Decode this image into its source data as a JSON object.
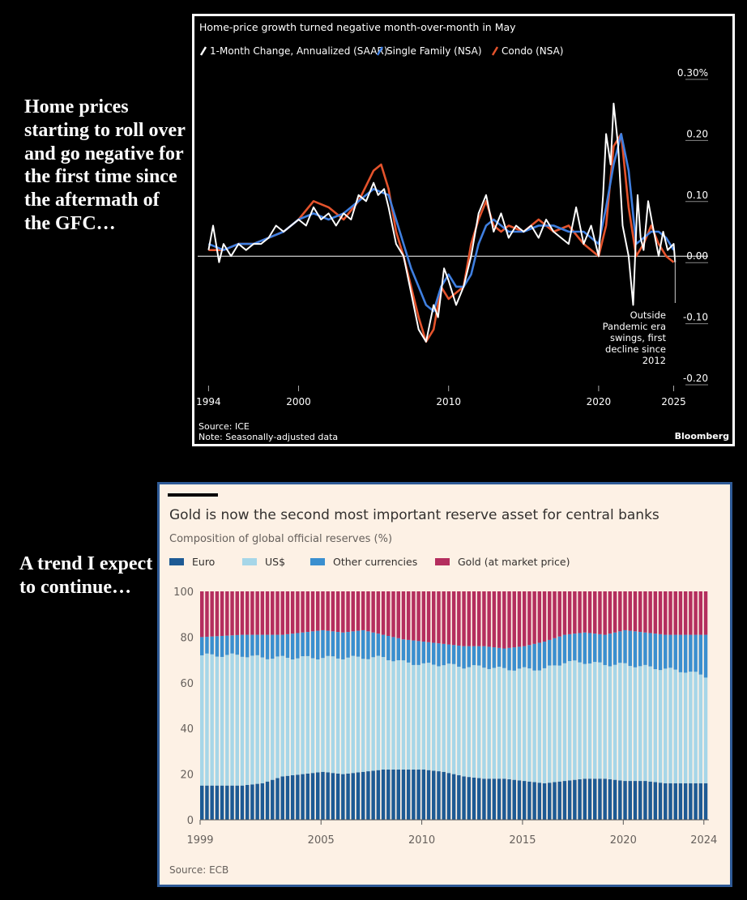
{
  "captions": {
    "top": "Home prices starting to roll over and go negative for the first time since the aftermath of the GFC…",
    "bottom": "A trend I expect to continue…"
  },
  "chart_data": [
    {
      "type": "line",
      "title": "Home-price growth turned negative month-over-month in May",
      "legend_position": "top-left",
      "series": [
        {
          "name": "1-Month Change, Annualized (SAAR)",
          "color": "#ffffff",
          "x": [
            1994,
            1994.3,
            1994.7,
            1995,
            1995.5,
            1996,
            1996.5,
            1997,
            1997.5,
            1998,
            1998.5,
            1999,
            1999.5,
            2000,
            2000.5,
            2001,
            2001.5,
            2002,
            2002.5,
            2003,
            2003.5,
            2004,
            2004.5,
            2005,
            2005.3,
            2005.7,
            2006,
            2006.5,
            2007,
            2007.5,
            2008,
            2008.5,
            2009,
            2009.3,
            2009.7,
            2010,
            2010.5,
            2011,
            2011.5,
            2012,
            2012.5,
            2013,
            2013.5,
            2014,
            2014.5,
            2015,
            2015.5,
            2016,
            2016.5,
            2017,
            2017.5,
            2018,
            2018.5,
            2019,
            2019.5,
            2020,
            2020.3,
            2020.5,
            2020.8,
            2021,
            2021.3,
            2021.6,
            2022,
            2022.3,
            2022.6,
            2022.8,
            2023,
            2023.3,
            2023.6,
            2024,
            2024.3,
            2024.6,
            2025,
            2025.1
          ],
          "y": [
            0.01,
            0.05,
            -0.01,
            0.02,
            0.0,
            0.02,
            0.01,
            0.02,
            0.02,
            0.03,
            0.05,
            0.04,
            0.05,
            0.06,
            0.05,
            0.08,
            0.06,
            0.07,
            0.05,
            0.07,
            0.06,
            0.1,
            0.09,
            0.12,
            0.1,
            0.11,
            0.08,
            0.02,
            0.0,
            -0.06,
            -0.12,
            -0.14,
            -0.08,
            -0.1,
            -0.02,
            -0.04,
            -0.08,
            -0.05,
            0.0,
            0.07,
            0.1,
            0.04,
            0.07,
            0.03,
            0.05,
            0.04,
            0.05,
            0.03,
            0.06,
            0.04,
            0.03,
            0.02,
            0.08,
            0.02,
            0.05,
            0.0,
            0.1,
            0.2,
            0.15,
            0.25,
            0.18,
            0.05,
            0.0,
            -0.08,
            0.1,
            0.03,
            0.01,
            0.09,
            0.05,
            0.0,
            0.04,
            0.01,
            0.02,
            -0.01
          ]
        },
        {
          "name": "Single Family (NSA)",
          "color": "#3f7fe0",
          "x": [
            1994,
            1995,
            1996,
            1997,
            1998,
            1999,
            2000,
            2001,
            2002,
            2003,
            2004,
            2005,
            2006,
            2006.5,
            2007,
            2007.5,
            2008,
            2008.5,
            2009,
            2009.5,
            2010,
            2010.5,
            2011,
            2011.5,
            2012,
            2012.5,
            2013,
            2014,
            2015,
            2016,
            2017,
            2018,
            2019,
            2020,
            2020.5,
            2021,
            2021.5,
            2022,
            2022.5,
            2023,
            2023.5,
            2024,
            2024.5,
            2025
          ],
          "y": [
            0.02,
            0.01,
            0.02,
            0.02,
            0.03,
            0.04,
            0.06,
            0.07,
            0.06,
            0.07,
            0.09,
            0.11,
            0.1,
            0.06,
            0.02,
            -0.02,
            -0.05,
            -0.08,
            -0.09,
            -0.05,
            -0.03,
            -0.05,
            -0.05,
            -0.03,
            0.02,
            0.05,
            0.06,
            0.04,
            0.04,
            0.05,
            0.05,
            0.04,
            0.04,
            0.02,
            0.08,
            0.15,
            0.2,
            0.14,
            0.02,
            0.03,
            0.04,
            0.04,
            0.03,
            0.01
          ]
        },
        {
          "name": "Condo (NSA)",
          "color": "#e4532c",
          "x": [
            1994,
            1995,
            1996,
            1997,
            1998,
            1999,
            2000,
            2001,
            2002,
            2003,
            2004,
            2005,
            2005.5,
            2006,
            2006.5,
            2007,
            2007.5,
            2008,
            2008.5,
            2009,
            2009.5,
            2010,
            2010.5,
            2011,
            2011.5,
            2012,
            2012.5,
            2013,
            2013.5,
            2014,
            2015,
            2016,
            2017,
            2018,
            2019,
            2020,
            2020.5,
            2021,
            2021.5,
            2022,
            2022.5,
            2023,
            2023.5,
            2024,
            2024.5,
            2025
          ],
          "y": [
            0.01,
            0.01,
            0.02,
            0.02,
            0.03,
            0.04,
            0.06,
            0.09,
            0.08,
            0.06,
            0.09,
            0.14,
            0.15,
            0.11,
            0.04,
            0.0,
            -0.05,
            -0.1,
            -0.14,
            -0.12,
            -0.05,
            -0.07,
            -0.06,
            -0.05,
            0.02,
            0.06,
            0.09,
            0.05,
            0.04,
            0.05,
            0.04,
            0.06,
            0.04,
            0.05,
            0.02,
            0.0,
            0.05,
            0.18,
            0.2,
            0.08,
            0.0,
            0.02,
            0.05,
            0.02,
            0.0,
            -0.01
          ]
        }
      ],
      "x_ticks": [
        "1994",
        "2000",
        "2010",
        "2020",
        "2025"
      ],
      "x_tick_values": [
        1994,
        2000,
        2010,
        2020,
        2025
      ],
      "xlim": [
        1993.6,
        2026.0
      ],
      "y_ticks": [
        "0.30%",
        "0.20",
        "0.10",
        "0.00",
        "-0.10",
        "-0.20"
      ],
      "y_tick_values": [
        0.3,
        0.2,
        0.1,
        0.0,
        -0.1,
        -0.2
      ],
      "ylim": [
        -0.2,
        0.3
      ],
      "annotation": [
        "Outside",
        "Pandemic era",
        "swings, first",
        "decline since",
        "2012"
      ],
      "source": "Source: ICE",
      "note": "Note: Seasonally-adjusted data",
      "brand": "Bloomberg",
      "colors": {
        "background": "#000000",
        "text": "#ffffff",
        "zero_line": "#ffffff"
      }
    },
    {
      "type": "bar",
      "stacked": true,
      "title": "Gold is now the second most important reserve asset for central banks",
      "subtitle": "Composition of global official reserves (%)",
      "legend_position": "top",
      "x_ticks": [
        "1999",
        "2005",
        "2010",
        "2015",
        "2020",
        "2024"
      ],
      "x_tick_values": [
        1999,
        2005,
        2010,
        2015,
        2020,
        2024
      ],
      "xlim": [
        1999,
        2024.25
      ],
      "y_ticks": [
        "0",
        "20",
        "40",
        "60",
        "80",
        "100"
      ],
      "y_tick_values": [
        0,
        20,
        40,
        60,
        80,
        100
      ],
      "ylim": [
        0,
        100
      ],
      "period_start": 1999,
      "series": [
        {
          "name": "Euro",
          "color": "#1d5a94",
          "key_years": [
            1999,
            2001,
            2002,
            2003,
            2004,
            2005,
            2006,
            2007,
            2008,
            2009,
            2010,
            2011,
            2012,
            2013,
            2014,
            2015,
            2016,
            2017,
            2018,
            2019,
            2020,
            2021,
            2022,
            2023,
            2024
          ],
          "key_values": [
            15,
            15,
            16,
            19,
            20,
            21,
            20,
            21,
            22,
            22,
            22,
            21,
            19,
            18,
            18,
            17,
            16,
            17,
            18,
            18,
            17,
            17,
            16,
            16,
            16
          ]
        },
        {
          "name": "US$",
          "color": "#a6d6e8",
          "key_years": [
            1999,
            2001,
            2002,
            2003,
            2004,
            2005,
            2006,
            2007,
            2008,
            2009,
            2010,
            2011,
            2012,
            2013,
            2014,
            2015,
            2016,
            2017,
            2018,
            2019,
            2020,
            2021,
            2022,
            2023,
            2024
          ],
          "key_values": [
            57,
            57,
            55,
            52,
            51,
            50,
            51,
            50,
            49,
            47,
            46,
            47,
            48,
            49,
            48,
            49,
            50,
            52,
            51,
            50,
            51,
            50,
            50,
            49,
            47
          ]
        },
        {
          "name": "Other currencies",
          "color": "#3a8fcf",
          "key_years": [
            1999,
            2001,
            2002,
            2003,
            2004,
            2005,
            2006,
            2007,
            2008,
            2009,
            2010,
            2011,
            2012,
            2013,
            2014,
            2015,
            2016,
            2017,
            2018,
            2019,
            2020,
            2021,
            2022,
            2023,
            2024
          ],
          "key_values": [
            8,
            9,
            10,
            10,
            11,
            12,
            11,
            12,
            10,
            10,
            10,
            9,
            9,
            9,
            9,
            10,
            12,
            12,
            13,
            13,
            15,
            15,
            15,
            16,
            18
          ]
        },
        {
          "name": "Gold (at market price)",
          "color": "#b42e5e"
        }
      ],
      "source": "Source: ECB",
      "colors": {
        "background": "#fdf1e5",
        "border": "#2e5a96",
        "text": "#33302e",
        "muted": "#66605c"
      }
    }
  ]
}
